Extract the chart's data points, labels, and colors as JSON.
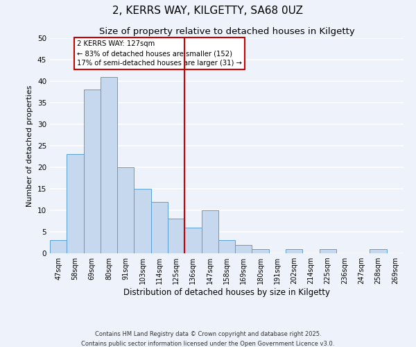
{
  "title": "2, KERRS WAY, KILGETTY, SA68 0UZ",
  "subtitle": "Size of property relative to detached houses in Kilgetty",
  "xlabel": "Distribution of detached houses by size in Kilgetty",
  "ylabel": "Number of detached properties",
  "bar_color": "#c5d8ed",
  "bar_edge_color": "#5a9fd4",
  "background_color": "#eef2fa",
  "grid_color": "#ffffff",
  "bins": [
    "47sqm",
    "58sqm",
    "69sqm",
    "80sqm",
    "91sqm",
    "103sqm",
    "114sqm",
    "125sqm",
    "136sqm",
    "147sqm",
    "158sqm",
    "169sqm",
    "180sqm",
    "191sqm",
    "202sqm",
    "214sqm",
    "225sqm",
    "236sqm",
    "247sqm",
    "258sqm",
    "269sqm"
  ],
  "values": [
    3,
    23,
    38,
    41,
    20,
    15,
    12,
    8,
    6,
    10,
    3,
    2,
    1,
    0,
    1,
    0,
    1,
    0,
    0,
    1,
    0
  ],
  "ylim": [
    0,
    50
  ],
  "yticks": [
    0,
    5,
    10,
    15,
    20,
    25,
    30,
    35,
    40,
    45,
    50
  ],
  "vline_x_idx": 7.5,
  "vline_color": "#cc0000",
  "annotation_title": "2 KERRS WAY: 127sqm",
  "annotation_line1": "← 83% of detached houses are smaller (152)",
  "annotation_line2": "17% of semi-detached houses are larger (31) →",
  "annotation_box_color": "#ffffff",
  "annotation_box_edge": "#cc0000",
  "footer1": "Contains HM Land Registry data © Crown copyright and database right 2025.",
  "footer2": "Contains public sector information licensed under the Open Government Licence v3.0."
}
